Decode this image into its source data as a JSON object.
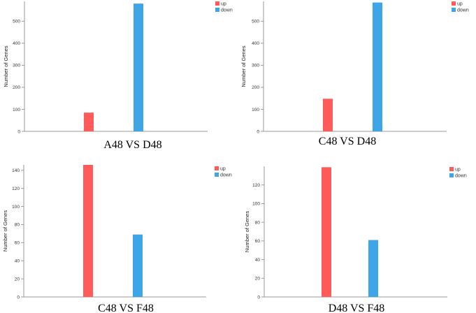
{
  "chart_data": [
    {
      "type": "bar",
      "title": "A48 VS D48",
      "xlabel": "",
      "ylabel": "Number of Genes",
      "ylim": [
        0,
        590
      ],
      "yticks": [
        0,
        100,
        200,
        300,
        400,
        500
      ],
      "series": [
        {
          "name": "up",
          "color": "#ff5b5b",
          "value": 85
        },
        {
          "name": "down",
          "color": "#3ea6e6",
          "value": 580
        }
      ],
      "legend": "top-right",
      "grid": false
    },
    {
      "type": "bar",
      "title": "C48 VS D48",
      "xlabel": "",
      "ylabel": "Number of Genes",
      "ylim": [
        0,
        590
      ],
      "yticks": [
        0,
        100,
        200,
        300,
        400,
        500
      ],
      "series": [
        {
          "name": "up",
          "color": "#ff5b5b",
          "value": 148
        },
        {
          "name": "down",
          "color": "#3ea6e6",
          "value": 585
        }
      ],
      "legend": "top-right",
      "grid": false
    },
    {
      "type": "bar",
      "title": "C48 VS F48",
      "xlabel": "",
      "ylabel": "Number of Genes",
      "ylim": [
        0,
        146
      ],
      "yticks": [
        0,
        20,
        40,
        60,
        80,
        100,
        120,
        140
      ],
      "series": [
        {
          "name": "up",
          "color": "#ff5b5b",
          "value": 146
        },
        {
          "name": "down",
          "color": "#3ea6e6",
          "value": 69
        }
      ],
      "legend": "top-right",
      "grid": false
    },
    {
      "type": "bar",
      "title": "D48 VS F48",
      "xlabel": "",
      "ylabel": "Number of Genes",
      "ylim": [
        0,
        140
      ],
      "yticks": [
        0,
        20,
        40,
        60,
        80,
        100,
        120
      ],
      "series": [
        {
          "name": "up",
          "color": "#ff5b5b",
          "value": 139
        },
        {
          "name": "down",
          "color": "#3ea6e6",
          "value": 61
        }
      ],
      "legend": "top-right",
      "grid": false
    }
  ]
}
